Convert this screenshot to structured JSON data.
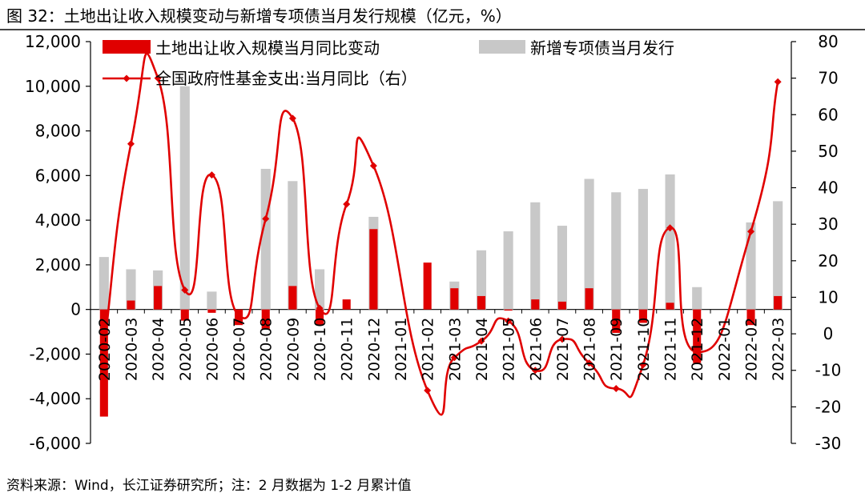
{
  "title": "图 32：土地出让收入规模变动与新增专项债当月发行规模（亿元，%）",
  "source": "资料来源：Wind，长江证券研究所；注：2 月数据为 1-2 月累计值",
  "chart_data": {
    "type": "bar+line",
    "categories": [
      "2020-02",
      "2020-03",
      "2020-04",
      "2020-05",
      "2020-06",
      "2020-07",
      "2020-08",
      "2020-09",
      "2020-10",
      "2020-11",
      "2020-12",
      "2021-01",
      "2021-02",
      "2021-03",
      "2021-04",
      "2021-05",
      "2021-06",
      "2021-07",
      "2021-08",
      "2021-09",
      "2021-10",
      "2021-11",
      "2021-12",
      "2022-01",
      "2022-02",
      "2022-03"
    ],
    "left_axis": {
      "min": -6000,
      "max": 12000,
      "step": 2000,
      "tick_labels": [
        "-6,000",
        "-4,000",
        "-2,000",
        "0",
        "2,000",
        "4,000",
        "6,000",
        "8,000",
        "10,000",
        "12,000"
      ]
    },
    "right_axis": {
      "min": -30,
      "max": 80,
      "step": 10,
      "tick_labels": [
        "-30",
        "-20",
        "-10",
        "0",
        "10",
        "20",
        "30",
        "40",
        "50",
        "60",
        "70",
        "80"
      ]
    },
    "series": [
      {
        "name": "土地出让收入规模当月同比变动",
        "kind": "bar",
        "axis": "left",
        "color": "#e00000",
        "values": [
          -4800,
          400,
          1050,
          -500,
          -150,
          -700,
          -900,
          1050,
          -700,
          450,
          3600,
          null,
          2100,
          950,
          600,
          -50,
          450,
          350,
          950,
          -1050,
          -600,
          300,
          -2400,
          null,
          -700,
          600
        ]
      },
      {
        "name": "新增专项债当月发行",
        "kind": "bar",
        "axis": "left",
        "color": "#c8c8c8",
        "values": [
          2350,
          1800,
          1750,
          10000,
          800,
          null,
          6300,
          5750,
          1800,
          null,
          4150,
          null,
          null,
          1250,
          2650,
          3500,
          4800,
          3750,
          5850,
          5250,
          5400,
          6050,
          1000,
          null,
          3900,
          4850
        ]
      },
      {
        "name": "全国政府性基金支出:当月同比（右）",
        "kind": "line",
        "axis": "right",
        "color": "#e00000",
        "values": [
          -4,
          52,
          70,
          12,
          43.5,
          5,
          31.5,
          59,
          7,
          35.5,
          46,
          null,
          -15.5,
          -6.5,
          -2,
          3.5,
          -10,
          -1.5,
          -8,
          -15,
          -8.5,
          29,
          -5,
          null,
          28,
          69
        ]
      }
    ],
    "legend_position": "top-left",
    "grid": false
  }
}
